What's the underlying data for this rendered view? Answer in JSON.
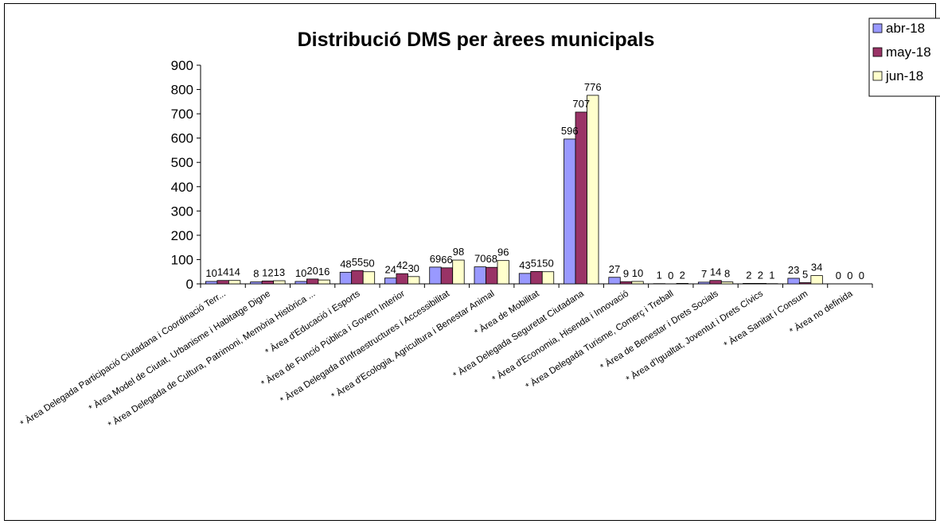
{
  "chart_data": {
    "type": "bar",
    "title": "Distribució DMS per àrees municipals",
    "xlabel": "",
    "ylabel": "",
    "ylim": [
      0,
      900
    ],
    "yticks": [
      0,
      100,
      200,
      300,
      400,
      500,
      600,
      700,
      800,
      900
    ],
    "grid": false,
    "legend_position": "top-right",
    "categories": [
      "* Àrea Delegada Participació Ciutadana i Coordinació Terr...",
      "* Àrea Model de Ciutat, Urbanisme i Habitatge Digne",
      "* Àrea Delegada de Cultura, Patrimoni, Memòria Històrica ...",
      "* Àrea d'Educació i Esports",
      "* Àrea de Funció Pública i Govern Interior",
      "* Àrea Delegada d'Infraestructures i Accessibilitat",
      "* Àrea d'Ecologia, Agricultura i Benestar Animal",
      "* Àrea de Mobilitat",
      "* Àrea Delegada Seguretat Ciutadana",
      "* Àrea d'Economia, Hisenda i Innovació",
      "* Àrea Delegada Turisme, Comerç i Treball",
      "* Àrea de Benestar i Drets Socials",
      "* Àrea d'Igualtat, Joventut i Drets Cívics",
      "* Àrea Sanitat i Consum",
      "* Àrea no definida"
    ],
    "series": [
      {
        "name": "abr-18",
        "color": "#9999ff",
        "values": [
          10,
          8,
          10,
          48,
          24,
          69,
          70,
          43,
          596,
          27,
          1,
          7,
          2,
          23,
          0
        ]
      },
      {
        "name": "may-18",
        "color": "#993366",
        "values": [
          14,
          12,
          20,
          55,
          42,
          66,
          68,
          51,
          707,
          9,
          0,
          14,
          2,
          5,
          0
        ]
      },
      {
        "name": "jun-18",
        "color": "#ffffcc",
        "values": [
          14,
          13,
          16,
          50,
          30,
          98,
          96,
          50,
          776,
          10,
          2,
          8,
          1,
          34,
          0
        ]
      }
    ]
  }
}
